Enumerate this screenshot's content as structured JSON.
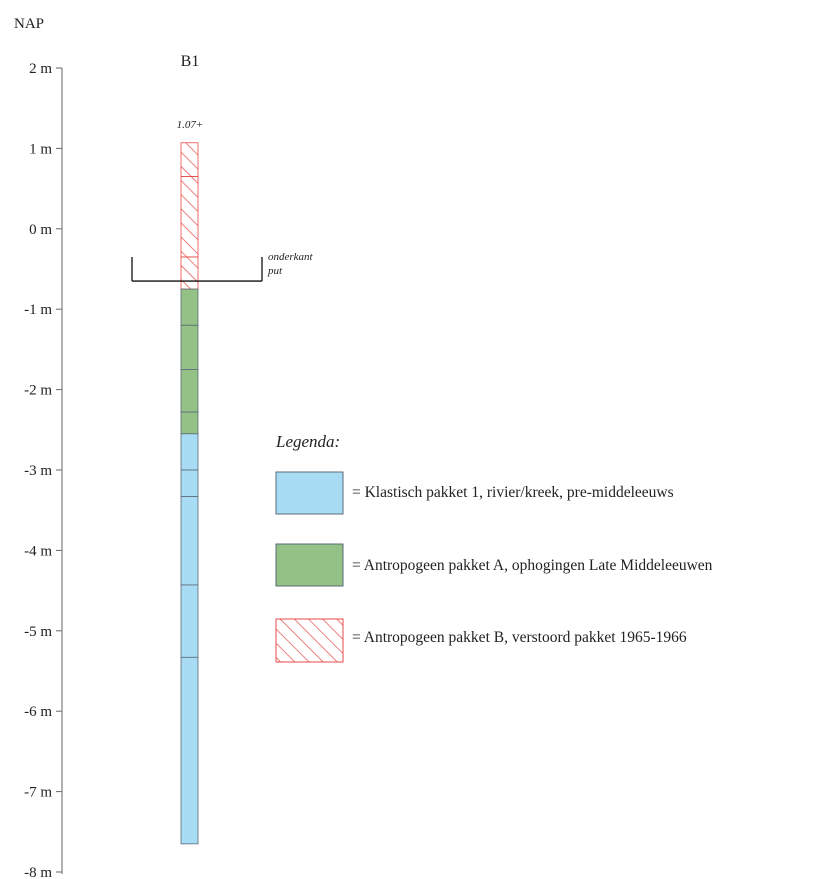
{
  "vertical_reference": "NAP",
  "borehole": {
    "name": "B1",
    "top_label": "1.07+",
    "top_depth_m": 1.07,
    "bottom_depth_m": -7.65
  },
  "axis": {
    "min_m": -8,
    "max_m": 2,
    "ticks": [
      {
        "value": 2,
        "label": "2 m"
      },
      {
        "value": 1,
        "label": "1 m"
      },
      {
        "value": 0,
        "label": "0 m"
      },
      {
        "value": -1,
        "label": "-1 m"
      },
      {
        "value": -2,
        "label": "-2 m"
      },
      {
        "value": -3,
        "label": "-3 m"
      },
      {
        "value": -4,
        "label": "-4 m"
      },
      {
        "value": -5,
        "label": "-5 m"
      },
      {
        "value": -6,
        "label": "-6 m"
      },
      {
        "value": -7,
        "label": "-7 m"
      },
      {
        "value": -8,
        "label": "-8 m"
      }
    ]
  },
  "pit_bottom": {
    "label_line1": "onderkant",
    "label_line2": "put",
    "level_m": -0.65,
    "rim_m": -0.35
  },
  "segments": [
    {
      "top": 1.07,
      "bottom": 0.65,
      "type": "B"
    },
    {
      "top": 0.65,
      "bottom": -0.35,
      "type": "B"
    },
    {
      "top": -0.35,
      "bottom": -0.75,
      "type": "B"
    },
    {
      "top": -0.75,
      "bottom": -1.2,
      "type": "A"
    },
    {
      "top": -1.2,
      "bottom": -1.75,
      "type": "A"
    },
    {
      "top": -1.75,
      "bottom": -2.28,
      "type": "A"
    },
    {
      "top": -2.28,
      "bottom": -2.55,
      "type": "A"
    },
    {
      "top": -2.55,
      "bottom": -3.0,
      "type": "1"
    },
    {
      "top": -3.0,
      "bottom": -3.33,
      "type": "1"
    },
    {
      "top": -3.33,
      "bottom": -4.43,
      "type": "1"
    },
    {
      "top": -4.43,
      "bottom": -5.33,
      "type": "1"
    },
    {
      "top": -5.33,
      "bottom": -7.65,
      "type": "1"
    }
  ],
  "legend": {
    "title": "Legenda:",
    "items": [
      {
        "type": "1",
        "text": "= Klastisch pakket 1, rivier/kreek, pre-middeleeuws",
        "color": "#a8dcf5"
      },
      {
        "type": "A",
        "text": "= Antropogeen pakket A, ophogingen Late Middeleeuwen",
        "color": "#94c186"
      },
      {
        "type": "B",
        "text": "= Antropogeen pakket B, verstoord pakket 1965-1966",
        "color": "#e84a4a"
      }
    ]
  },
  "colors": {
    "klastisch": "#a8dcf5",
    "antropogeen_a": "#94c186",
    "hatch": "#e84a4a",
    "outline": "#5a6b78"
  }
}
